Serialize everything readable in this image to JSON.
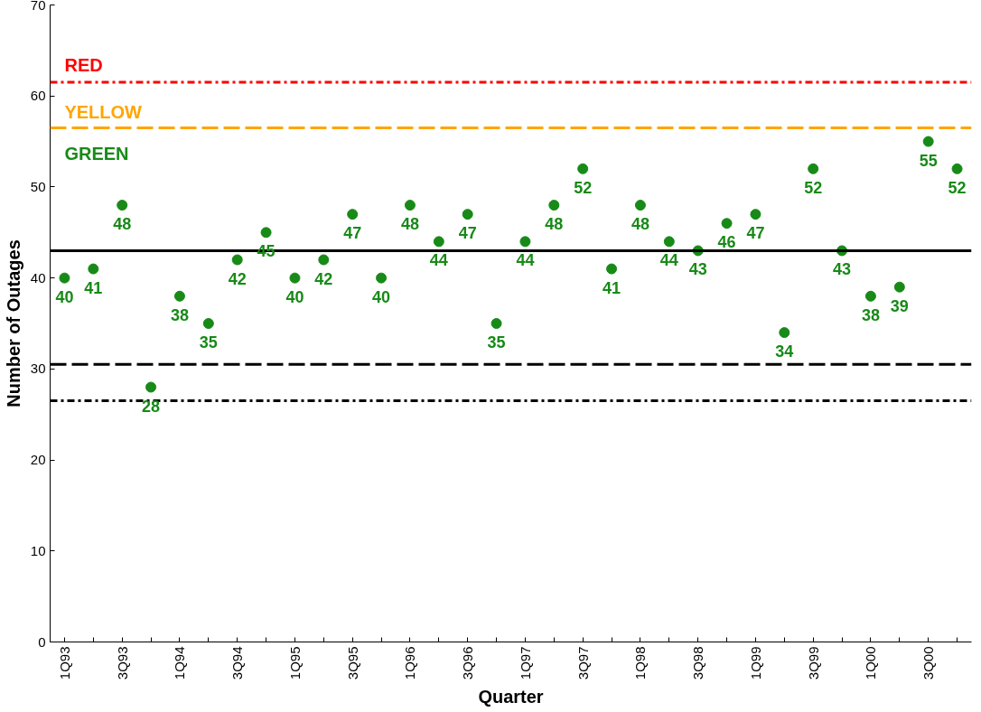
{
  "chart_data": {
    "type": "scatter",
    "xlabel": "Quarter",
    "ylabel": "Number of Outages",
    "categories": [
      "1Q93",
      null,
      "3Q93",
      null,
      "1Q94",
      null,
      "3Q94",
      null,
      "1Q95",
      null,
      "3Q95",
      null,
      "1Q96",
      null,
      "3Q96",
      null,
      "1Q97",
      null,
      "3Q97",
      null,
      "1Q98",
      null,
      "3Q98",
      null,
      "1Q99",
      null,
      "3Q99",
      null,
      "1Q00",
      null,
      "3Q00",
      null
    ],
    "series": [
      {
        "color": "#178a17",
        "values": [
          40,
          41,
          48,
          28,
          38,
          35,
          42,
          45,
          40,
          42,
          47,
          40,
          48,
          44,
          47,
          35,
          44,
          48,
          52,
          41,
          48,
          44,
          43,
          46,
          47,
          34,
          52,
          43,
          38,
          39,
          55,
          52
        ]
      }
    ],
    "data_labels": true,
    "marker": "circle",
    "grid": false,
    "ylim": [
      0,
      70
    ],
    "yticks": [
      0,
      10,
      20,
      30,
      40,
      50,
      60,
      70
    ],
    "ref_lines": [
      {
        "axis": "y",
        "value": 61.5,
        "label": "RED",
        "color": "#ff0000",
        "line_style": "dotted"
      },
      {
        "axis": "y",
        "value": 56.5,
        "label": "YELLOW",
        "color": "#ffa500",
        "line_style": "dashed"
      },
      {
        "axis": "y",
        "value": 43,
        "color": "#000000",
        "line_style": "solid"
      },
      {
        "axis": "y",
        "value": 30.5,
        "color": "#000000",
        "line_style": "dashed"
      },
      {
        "axis": "y",
        "value": 26.5,
        "color": "#000000",
        "line_style": "dotted"
      }
    ],
    "annotations": [
      "GREEN"
    ]
  }
}
